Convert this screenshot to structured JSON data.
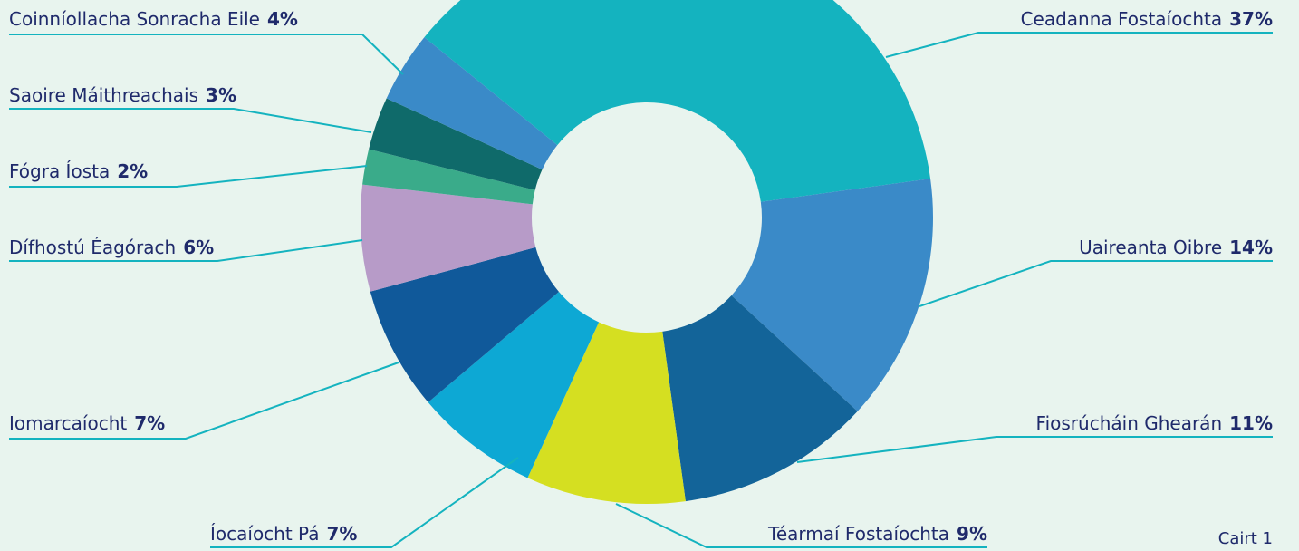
{
  "chart_data": {
    "type": "donut",
    "caption": "Cairt 1",
    "categories": [
      "Ceadanna Fostaíochta",
      "Uaireanta Oibre",
      "Fiosrúcháin Ghearán",
      "Téarmaí Fostaíochta",
      "Íocaíocht Pá",
      "Iomarcaíocht",
      "Dífhostú Éagórach",
      "Fógra Íosta",
      "Saoire Máithreachais",
      "Coinníollacha Sonracha Eile"
    ],
    "values": [
      37,
      14,
      11,
      9,
      7,
      7,
      6,
      2,
      3,
      4
    ],
    "value_labels": [
      "37%",
      "14%",
      "11%",
      "9%",
      "7%",
      "7%",
      "6%",
      "2%",
      "3%",
      "4%"
    ],
    "colors": [
      "#14b3bf",
      "#3a8ac8",
      "#136499",
      "#d5df21",
      "#0da8d4",
      "#10599a",
      "#b79bc8",
      "#3aab8a",
      "#0f6a6a",
      "#3a8ac8"
    ]
  }
}
